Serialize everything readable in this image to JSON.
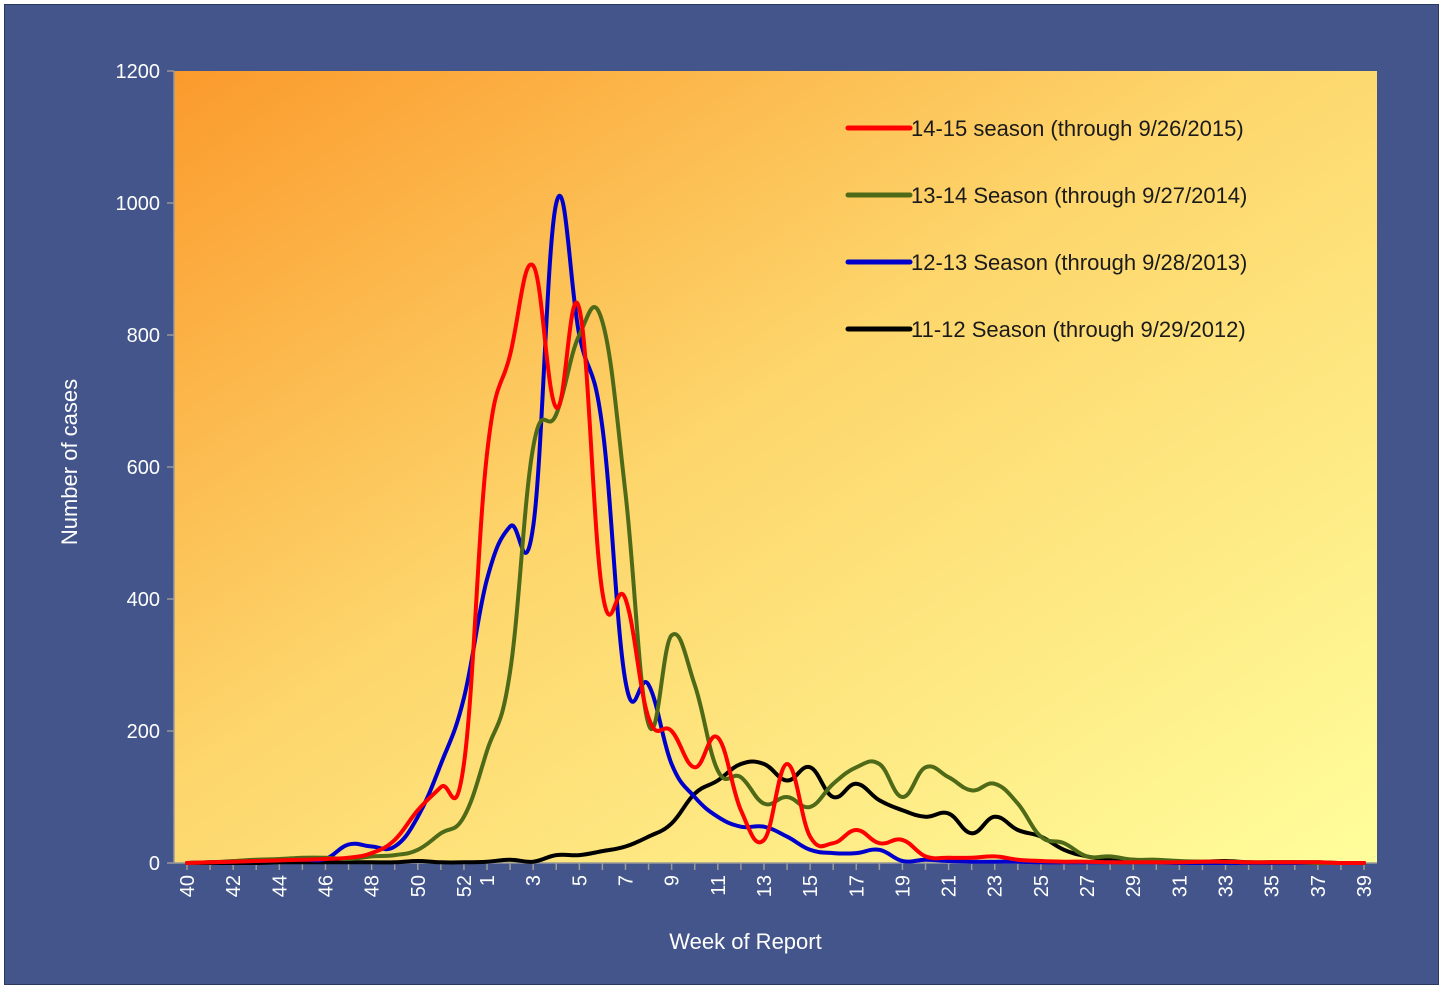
{
  "chart_data": {
    "type": "line",
    "title": "",
    "xlabel": "Week of Report",
    "ylabel": "Number of  cases",
    "ylim": [
      0,
      1200
    ],
    "yticks": [
      0,
      200,
      400,
      600,
      800,
      1000,
      1200
    ],
    "x": [
      40,
      41,
      42,
      43,
      44,
      45,
      46,
      47,
      48,
      49,
      50,
      51,
      52,
      1,
      2,
      3,
      4,
      5,
      6,
      7,
      8,
      9,
      10,
      11,
      12,
      13,
      14,
      15,
      16,
      17,
      18,
      19,
      20,
      21,
      22,
      23,
      24,
      25,
      26,
      27,
      28,
      29,
      30,
      31,
      32,
      33,
      34,
      35,
      36,
      37,
      38,
      39
    ],
    "xtick_labels": [
      "40",
      "42",
      "44",
      "46",
      "48",
      "50",
      "52",
      "1",
      "3",
      "5",
      "7",
      "9",
      "11",
      "13",
      "15",
      "17",
      "19",
      "21",
      "23",
      "25",
      "27",
      "29",
      "31",
      "33",
      "35",
      "37",
      "39"
    ],
    "grid": false,
    "legend": {
      "position": "top-right"
    },
    "series": [
      {
        "name": "14-15 season  (through 9/26/2015)",
        "color": "#ff0000",
        "values": [
          0,
          1,
          2,
          3,
          4,
          5,
          6,
          8,
          15,
          35,
          80,
          115,
          150,
          620,
          770,
          905,
          690,
          840,
          410,
          400,
          220,
          200,
          145,
          190,
          80,
          35,
          150,
          40,
          30,
          50,
          30,
          35,
          10,
          8,
          8,
          10,
          5,
          3,
          2,
          2,
          1,
          1,
          1,
          1,
          2,
          2,
          1,
          1,
          1,
          1,
          0,
          0
        ]
      },
      {
        "name": "13-14 Season (through 9/27/2014)",
        "color": "#4e6a18",
        "values": [
          0,
          1,
          3,
          5,
          6,
          8,
          8,
          6,
          10,
          12,
          20,
          45,
          70,
          170,
          290,
          630,
          680,
          800,
          820,
          560,
          210,
          345,
          270,
          140,
          130,
          90,
          100,
          85,
          120,
          145,
          150,
          100,
          145,
          130,
          110,
          120,
          90,
          40,
          30,
          10,
          10,
          5,
          5,
          3,
          2,
          2,
          1,
          1,
          1,
          0,
          0,
          0
        ]
      },
      {
        "name": "12-13 Season (through 9/28/2013)",
        "color": "#0000cc",
        "values": [
          0,
          1,
          2,
          3,
          4,
          5,
          6,
          28,
          25,
          25,
          70,
          150,
          250,
          430,
          510,
          510,
          1000,
          800,
          660,
          275,
          270,
          150,
          100,
          70,
          55,
          55,
          40,
          20,
          15,
          15,
          20,
          3,
          5,
          3,
          2,
          2,
          2,
          1,
          1,
          1,
          1,
          1,
          1,
          0,
          0,
          0,
          0,
          0,
          0,
          0,
          0,
          0
        ]
      },
      {
        "name": "11-12 Season (through 9/29/2012)",
        "color": "#000000",
        "values": [
          0,
          0,
          0,
          0,
          1,
          1,
          1,
          1,
          1,
          1,
          3,
          1,
          1,
          2,
          5,
          2,
          12,
          12,
          18,
          25,
          40,
          60,
          105,
          125,
          150,
          150,
          125,
          145,
          100,
          120,
          95,
          80,
          70,
          75,
          45,
          70,
          50,
          40,
          20,
          10,
          5,
          5,
          3,
          2,
          2,
          3,
          1,
          1,
          1,
          1,
          0,
          0
        ]
      }
    ]
  }
}
